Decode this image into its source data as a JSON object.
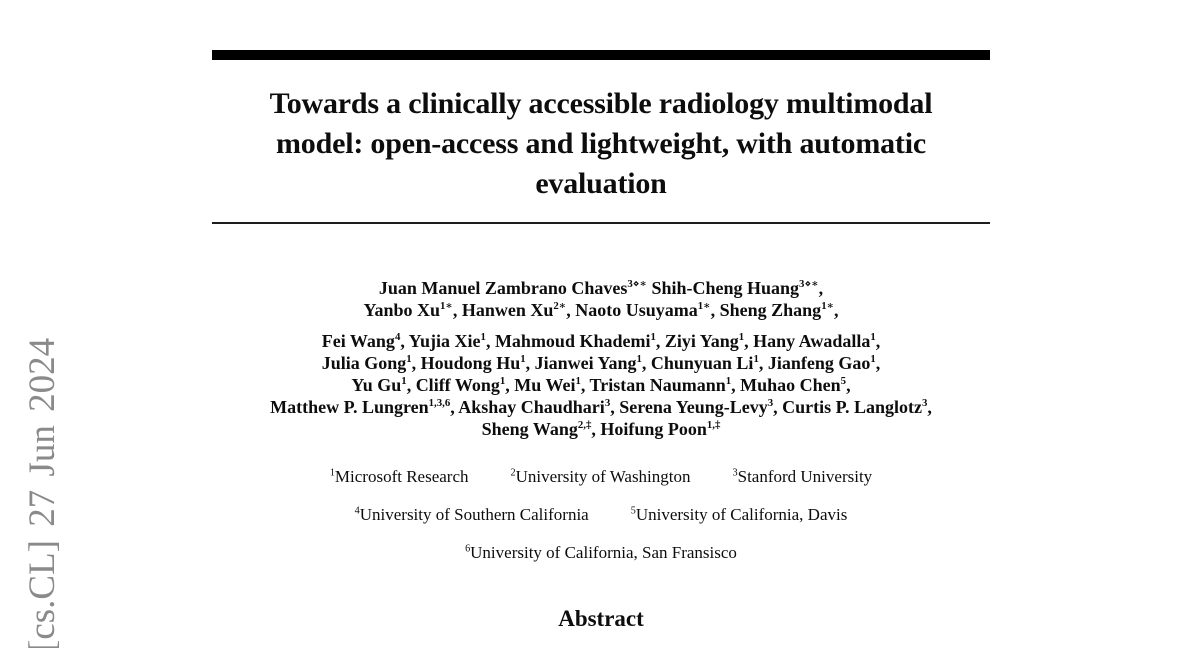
{
  "page": {
    "kind": "arxiv-paper-first-page",
    "background_color": "#ffffff",
    "text_color": "#0d0d0d",
    "rule_color": "#000000",
    "watermark_color": "#8a8a8a"
  },
  "watermark": {
    "text": "[cs.CL] 27 Jun 2024"
  },
  "title": {
    "lines": [
      "Towards a clinically accessible radiology multimodal",
      "model: open-access and lightweight, with automatic",
      "evaluation"
    ]
  },
  "authors": {
    "primary_lines": [
      "Juan Manuel Zambrano Chaves^{3⋄∗} Shih-Cheng Huang^{3⋄∗},",
      "Yanbo Xu^{1∗}, Hanwen Xu^{2∗}, Naoto Usuyama^{1∗}, Sheng Zhang^{1∗},"
    ],
    "secondary_lines": [
      "Fei Wang^{4}, Yujia Xie^{1}, Mahmoud Khademi^{1}, Ziyi Yang^{1}, Hany Awadalla^{1},",
      "Julia Gong^{1}, Houdong Hu^{1}, Jianwei Yang^{1}, Chunyuan Li^{1}, Jianfeng Gao^{1},",
      "Yu Gu^{1}, Cliff Wong^{1}, Mu Wei^{1}, Tristan Naumann^{1}, Muhao Chen^{5},",
      "Matthew P. Lungren^{1,3,6}, Akshay Chaudhari^{3}, Serena Yeung-Levy^{3}, Curtis P. Langlotz^{3},",
      "Sheng Wang^{2,‡}, Hoifung Poon^{1,‡}"
    ]
  },
  "affiliations": {
    "rows": [
      [
        "^{1}Microsoft Research",
        "^{2}University of Washington",
        "^{3}Stanford University"
      ],
      [
        "^{4}University of Southern California",
        "^{5}University of California, Davis"
      ],
      [
        "^{6}University of California, San Fransisco"
      ]
    ]
  },
  "abstract": {
    "heading": "Abstract"
  }
}
